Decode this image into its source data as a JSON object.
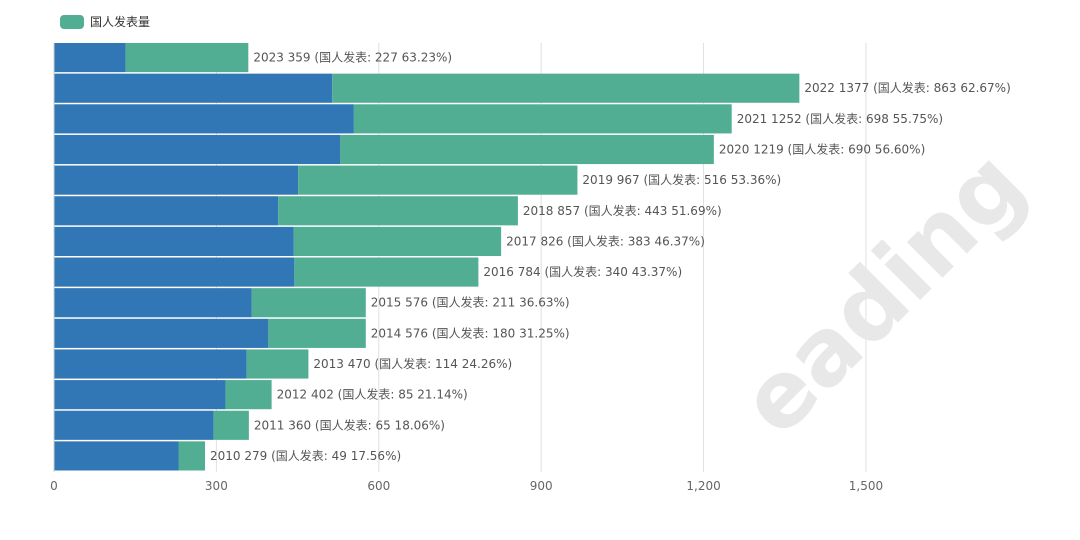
{
  "legend": {
    "label": "国人发表量",
    "color": "#52ae93"
  },
  "watermark": {
    "text": "eading"
  },
  "chart_data": {
    "type": "bar",
    "orientation": "horizontal",
    "stacked": true,
    "categories": [
      "2023",
      "2022",
      "2021",
      "2020",
      "2019",
      "2018",
      "2017",
      "2016",
      "2015",
      "2014",
      "2013",
      "2012",
      "2011",
      "2010"
    ],
    "series": [
      {
        "values": [
          132,
          514,
          554,
          529,
          451,
          414,
          443,
          444,
          365,
          396,
          356,
          317,
          295,
          230
        ],
        "color": "#3277b5"
      },
      {
        "name": "国人发表量",
        "values": [
          227,
          863,
          698,
          690,
          516,
          443,
          383,
          340,
          211,
          180,
          114,
          85,
          65,
          49
        ],
        "color": "#52ae93"
      }
    ],
    "totals": [
      359,
      1377,
      1252,
      1219,
      967,
      857,
      826,
      784,
      576,
      576,
      470,
      402,
      360,
      279
    ],
    "data_labels": [
      "2023 359 (国人发表: 227 63.23%)",
      "2022 1377 (国人发表: 863 62.67%)",
      "2021 1252 (国人发表: 698 55.75%)",
      "2020 1219 (国人发表: 690 56.60%)",
      "2019 967 (国人发表: 516 53.36%)",
      "2018 857 (国人发表: 443 51.69%)",
      "2017 826 (国人发表: 383 46.37%)",
      "2016 784 (国人发表: 340 43.37%)",
      "2015 576 (国人发表: 211 36.63%)",
      "2014 576 (国人发表: 180 31.25%)",
      "2013 470 (国人发表: 114 24.26%)",
      "2012 402 (国人发表: 85 21.14%)",
      "2011 360 (国人发表: 65 18.06%)",
      "2010 279 (国人发表: 49 17.56%)"
    ],
    "xlim": [
      0,
      1650
    ],
    "xticks": [
      0,
      300,
      600,
      900,
      1200,
      1500
    ],
    "xtick_labels": [
      "0",
      "300",
      "600",
      "900",
      "1,200",
      "1,500"
    ],
    "grid": true,
    "legend_position": "top-left"
  }
}
